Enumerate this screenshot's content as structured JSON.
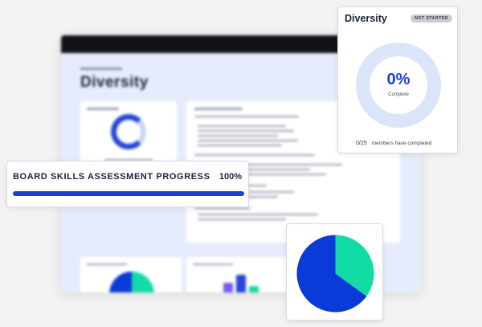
{
  "background": {
    "title": "Diversity"
  },
  "diversity_card": {
    "title": "Diversity",
    "status_badge": "NOT STARTED",
    "percent_label": "0%",
    "percent_value": 0,
    "complete_label": "Complete",
    "completed_count": "0/25",
    "footer_text": "members have completed"
  },
  "progress_card": {
    "title": "BOARD SKILLS ASSESSMENT PROGRESS",
    "percent_label": "100%",
    "percent_value": 100
  },
  "chart_data": {
    "type": "pie",
    "slices": [
      {
        "value": 35,
        "color": "#13dba6"
      },
      {
        "value": 65,
        "color": "#0a3ad8"
      }
    ]
  },
  "colors": {
    "accent": "#1a3fd6",
    "teal": "#13dba6",
    "track": "#dbe5f9"
  }
}
